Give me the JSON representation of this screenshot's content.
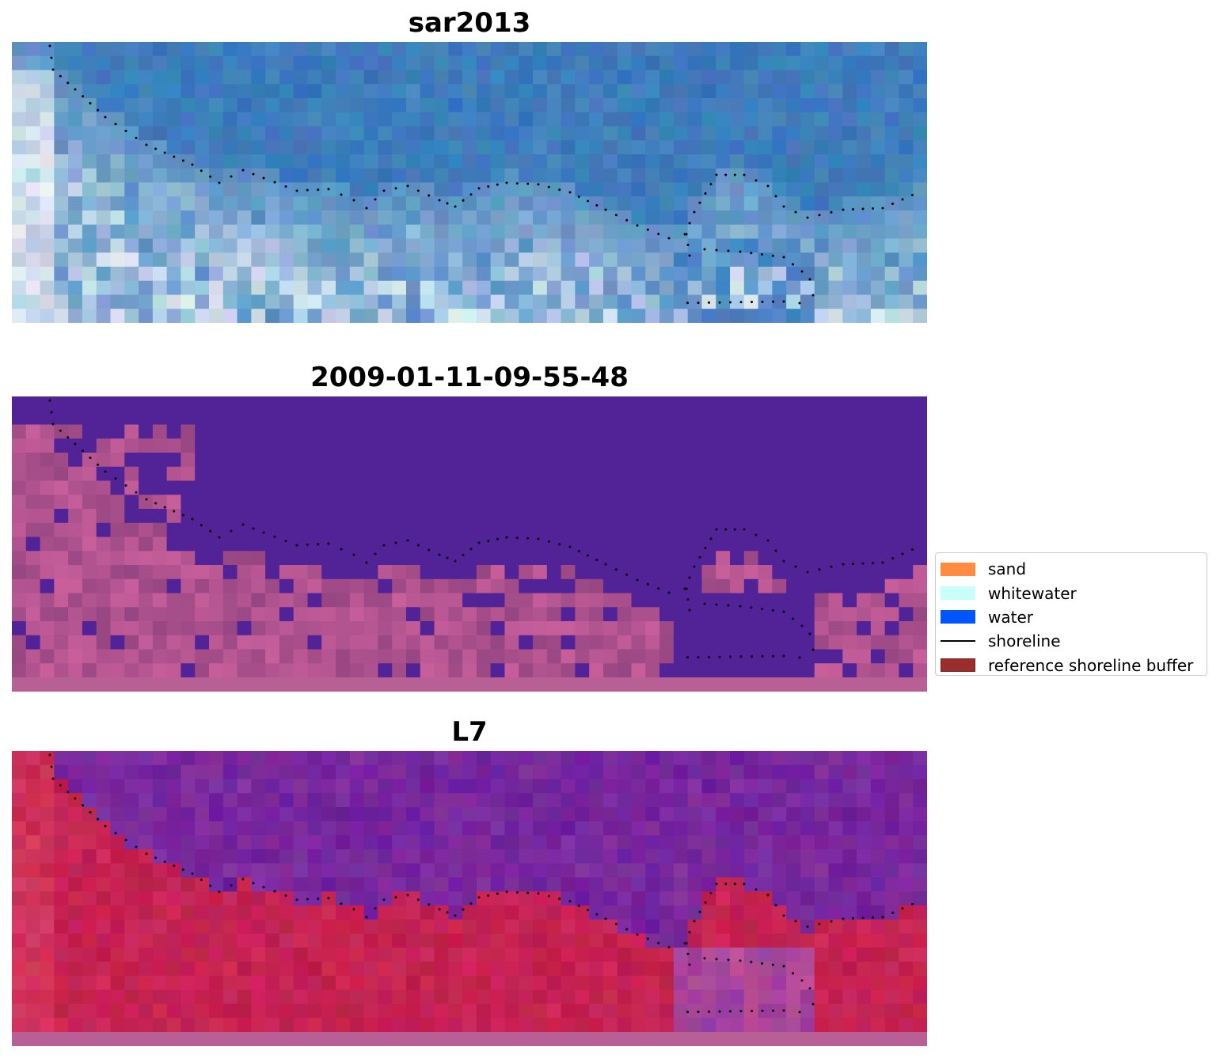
{
  "panels": [
    {
      "title": "sar2013",
      "image": "sar-composite-raster"
    },
    {
      "title": "2009-01-11-09-55-48",
      "image": "classified-raster"
    },
    {
      "title": "L7",
      "image": "landsat7-false-color-raster"
    }
  ],
  "legend": {
    "items": [
      {
        "label": "sand",
        "color": "#ff8c40",
        "kind": "patch"
      },
      {
        "label": "whitewater",
        "color": "#c8fffa",
        "kind": "patch"
      },
      {
        "label": "water",
        "color": "#0055ff",
        "kind": "patch"
      },
      {
        "label": "shoreline",
        "color": "#000000",
        "kind": "line"
      },
      {
        "label": "reference shoreline buffer",
        "color": "#9b2d2d",
        "edge": "#7a1e1e",
        "kind": "patch"
      }
    ]
  }
}
